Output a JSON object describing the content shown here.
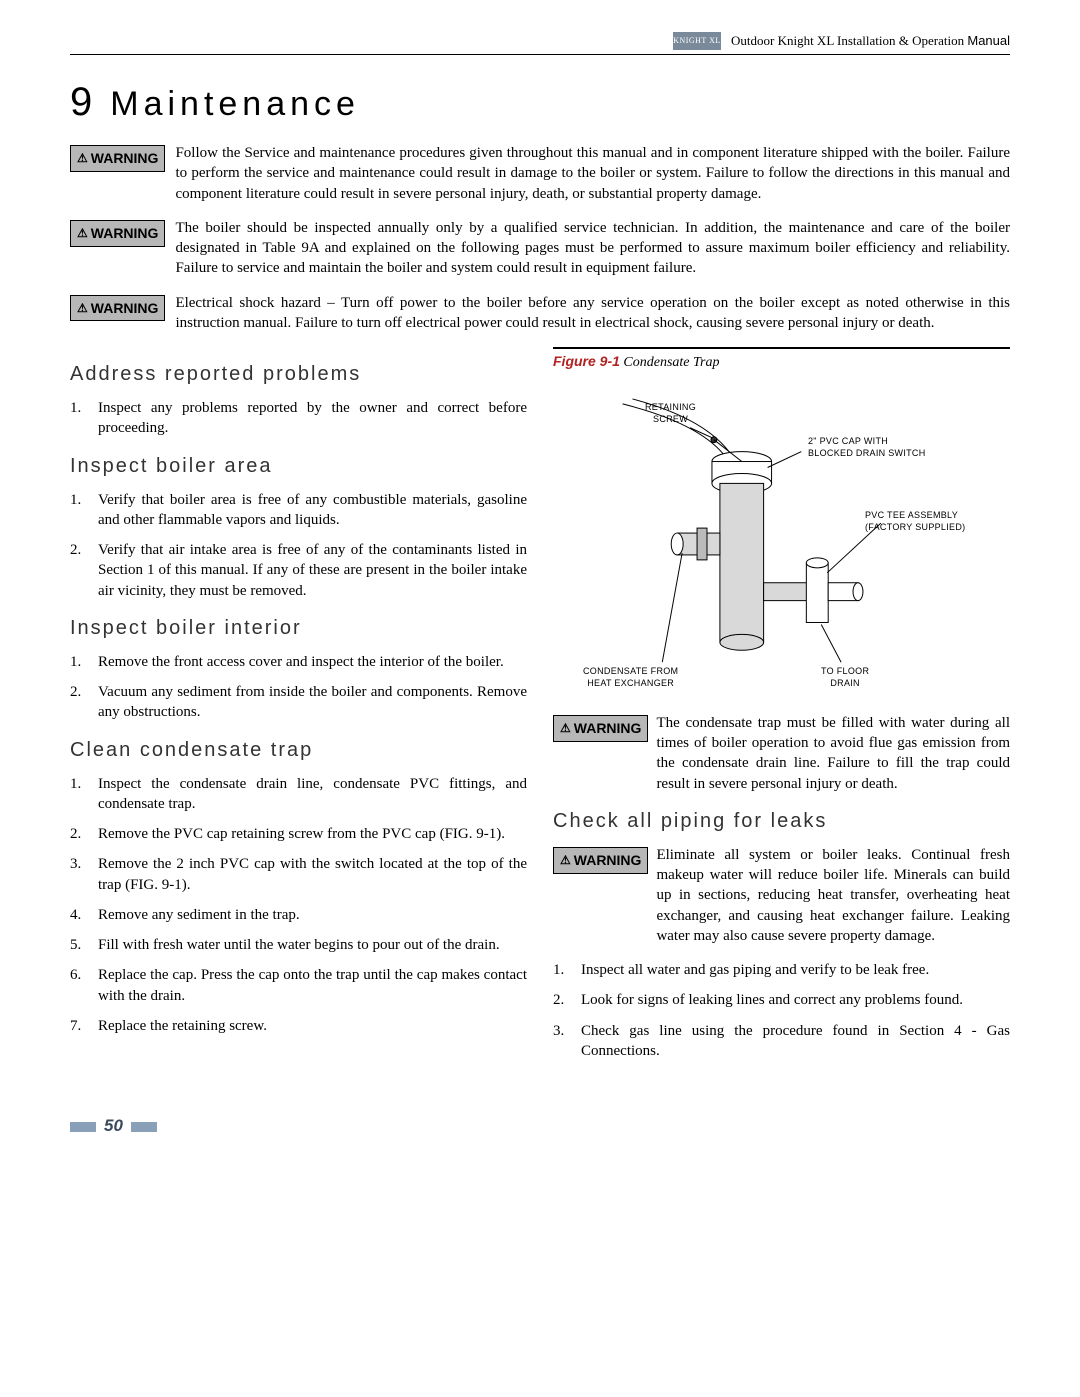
{
  "header": {
    "logo_text": "KNIGHT XL",
    "doc_title_prefix": "Outdoor Knight XL Installation & Operation",
    "doc_title_suffix": "Manual"
  },
  "chapter": {
    "number": "9",
    "title": "Maintenance"
  },
  "warnings_top": [
    "Follow the Service and maintenance procedures given throughout this manual and in component literature shipped with the boiler.  Failure to perform the service and maintenance could result in damage to the boiler or system.  Failure to follow the directions in this manual and component literature could result in severe personal injury, death, or substantial property damage.",
    "The boiler should be inspected annually only by a qualified service technician.  In addition, the maintenance and care of the boiler designated in Table 9A and explained on the following pages must be performed to assure maximum boiler efficiency and reliability.  Failure to service and maintain the boiler and system could result in equipment failure.",
    "Electrical shock hazard – Turn off power to the boiler before any service operation on the boiler except as noted otherwise in this instruction manual.  Failure to turn off electrical power could result in electrical shock, causing severe personal injury or death."
  ],
  "warning_label": "WARNING",
  "left_sections": [
    {
      "title": "Address reported problems",
      "items": [
        "Inspect any problems reported by the owner and correct before proceeding."
      ]
    },
    {
      "title": "Inspect boiler area",
      "items": [
        "Verify that boiler area is free of any combustible materials, gasoline and other flammable vapors and liquids.",
        "Verify that air intake area is free of any of the contaminants listed in Section 1 of this manual.  If any of these are present in the boiler intake air vicinity, they must be removed."
      ]
    },
    {
      "title": "Inspect boiler interior",
      "items": [
        "Remove the front access cover and inspect the interior of the boiler.",
        "Vacuum any sediment from inside the boiler and components.  Remove any obstructions."
      ]
    },
    {
      "title": "Clean condensate trap",
      "items": [
        "Inspect the condensate drain line, condensate PVC fittings, and condensate trap.",
        "Remove the PVC cap retaining screw from the PVC cap (FIG. 9-1).",
        "Remove the 2 inch PVC cap with the switch located at the top of the trap (FIG. 9-1).",
        "Remove any sediment in the trap.",
        "Fill with fresh water until the water begins to pour out of the drain.",
        "Replace the cap.  Press the cap onto the trap until the cap makes contact with the drain.",
        "Replace the retaining screw."
      ]
    }
  ],
  "figure": {
    "number": "Figure 9-1",
    "title": "Condensate Trap",
    "labels": {
      "retaining_screw": "RETAINING\nSCREW",
      "pvc_cap": "2\" PVC CAP WITH\nBLOCKED DRAIN SWITCH",
      "pvc_tee": "PVC TEE ASSEMBLY\n(FACTORY SUPPLIED)",
      "condensate_from": "CONDENSATE FROM\nHEAT EXCHANGER",
      "to_floor_drain": "TO FLOOR\nDRAIN"
    }
  },
  "right_warnings": [
    "The condensate trap must be filled with water during all times of boiler operation to avoid flue gas emission from the condensate drain line.  Failure to fill the trap could result in severe personal injury or death."
  ],
  "right_section": {
    "title": "Check all piping for leaks",
    "warning": "Eliminate all system or boiler leaks.  Continual fresh makeup water will reduce boiler life.  Minerals can build up in sections, reducing heat transfer, overheating heat exchanger, and causing heat exchanger failure.  Leaking water may also cause severe property damage.",
    "items": [
      "Inspect all water and gas piping and verify to be leak free.",
      "Look for signs of leaking lines and correct any problems found.",
      "Check gas line using the procedure found in Section 4 - Gas Connections."
    ]
  },
  "page_number": "50"
}
